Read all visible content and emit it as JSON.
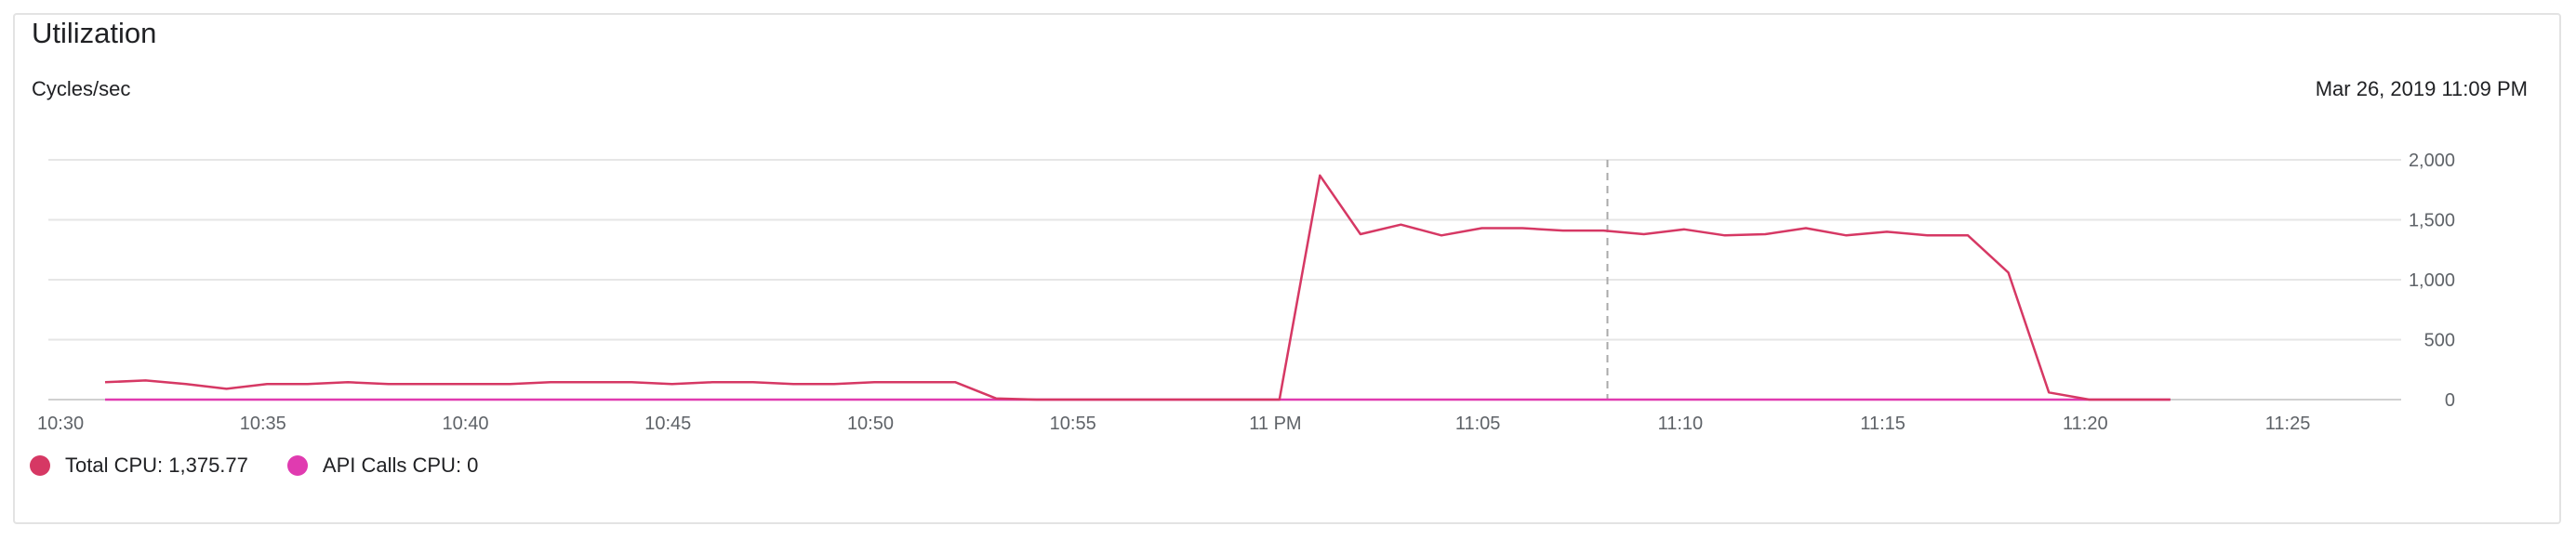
{
  "card": {
    "title": "Utilization",
    "unit_label": "Cycles/sec",
    "timestamp": "Mar 26, 2019 11:09 PM"
  },
  "legend": [
    {
      "label": "Total CPU: 1,375.77",
      "color": "#d63864"
    },
    {
      "label": "API Calls CPU: 0",
      "color": "#e03bb0"
    }
  ],
  "chart_data": {
    "type": "line",
    "ylim": [
      0,
      2000
    ],
    "xlim_minutes": [
      30.7,
      88.8
    ],
    "y_ticks": [
      0,
      500,
      1000,
      1500,
      2000
    ],
    "y_tick_labels": [
      "0",
      "500",
      "1,000",
      "1,500",
      "2,000"
    ],
    "x_ticks": [
      31,
      36,
      41,
      46,
      51,
      56,
      61,
      66,
      71,
      76,
      81,
      86
    ],
    "x_tick_labels": [
      "10:30",
      "10:35",
      "10:40",
      "10:45",
      "10:50",
      "10:55",
      "11 PM",
      "11:05",
      "11:10",
      "11:15",
      "11:20",
      "11:25"
    ],
    "hover_marker_minute": 69.2,
    "grid": true,
    "series": [
      {
        "name": "Total CPU",
        "color": "#d63864",
        "x": [
          32.1,
          33.1,
          34.1,
          35.1,
          36.1,
          37.1,
          38.1,
          39.1,
          40.1,
          41.1,
          42.1,
          43.1,
          44.1,
          45.1,
          46.1,
          47.1,
          48.1,
          49.1,
          50.1,
          51.1,
          52.1,
          53.1,
          54.1,
          55.1,
          56.1,
          57.1,
          58.1,
          59.1,
          60.1,
          61.1,
          62.1,
          63.1,
          64.1,
          65.1,
          66.1,
          67.1,
          68.1,
          69.1,
          70.1,
          71.1,
          72.1,
          73.1,
          74.1,
          75.1,
          76.1,
          77.1,
          78.1,
          79.1,
          80.1,
          81.1,
          82.1,
          83.1
        ],
        "y": [
          145,
          160,
          130,
          90,
          130,
          130,
          145,
          130,
          130,
          130,
          130,
          145,
          145,
          145,
          130,
          145,
          145,
          130,
          130,
          145,
          145,
          145,
          10,
          0,
          0,
          0,
          0,
          0,
          0,
          0,
          1870,
          1380,
          1460,
          1370,
          1430,
          1430,
          1410,
          1410,
          1380,
          1420,
          1370,
          1380,
          1430,
          1370,
          1400,
          1370,
          1370,
          1060,
          60,
          0,
          0,
          0
        ]
      },
      {
        "name": "API Calls CPU",
        "color": "#e03bb0",
        "x": [
          32.1,
          83.1
        ],
        "y": [
          0,
          0
        ]
      }
    ]
  }
}
